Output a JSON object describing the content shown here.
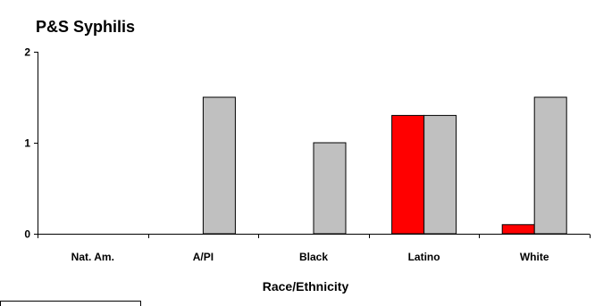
{
  "chart_data": {
    "type": "bar",
    "title": "P&S Syphilis",
    "xlabel": "Race/Ethnicity",
    "ylabel": "",
    "ylim": [
      0,
      2
    ],
    "yticks": [
      0,
      1,
      2
    ],
    "categories": [
      "Nat. Am.",
      "A/PI",
      "Black",
      "Latino",
      "White"
    ],
    "series": [
      {
        "color": "#ff0000",
        "values": [
          0,
          0,
          0,
          1.3,
          0.1
        ]
      },
      {
        "color": "#c0c0c0",
        "values": [
          0,
          1.5,
          1.0,
          1.3,
          1.5
        ]
      }
    ],
    "grid": false,
    "legend": "none"
  }
}
